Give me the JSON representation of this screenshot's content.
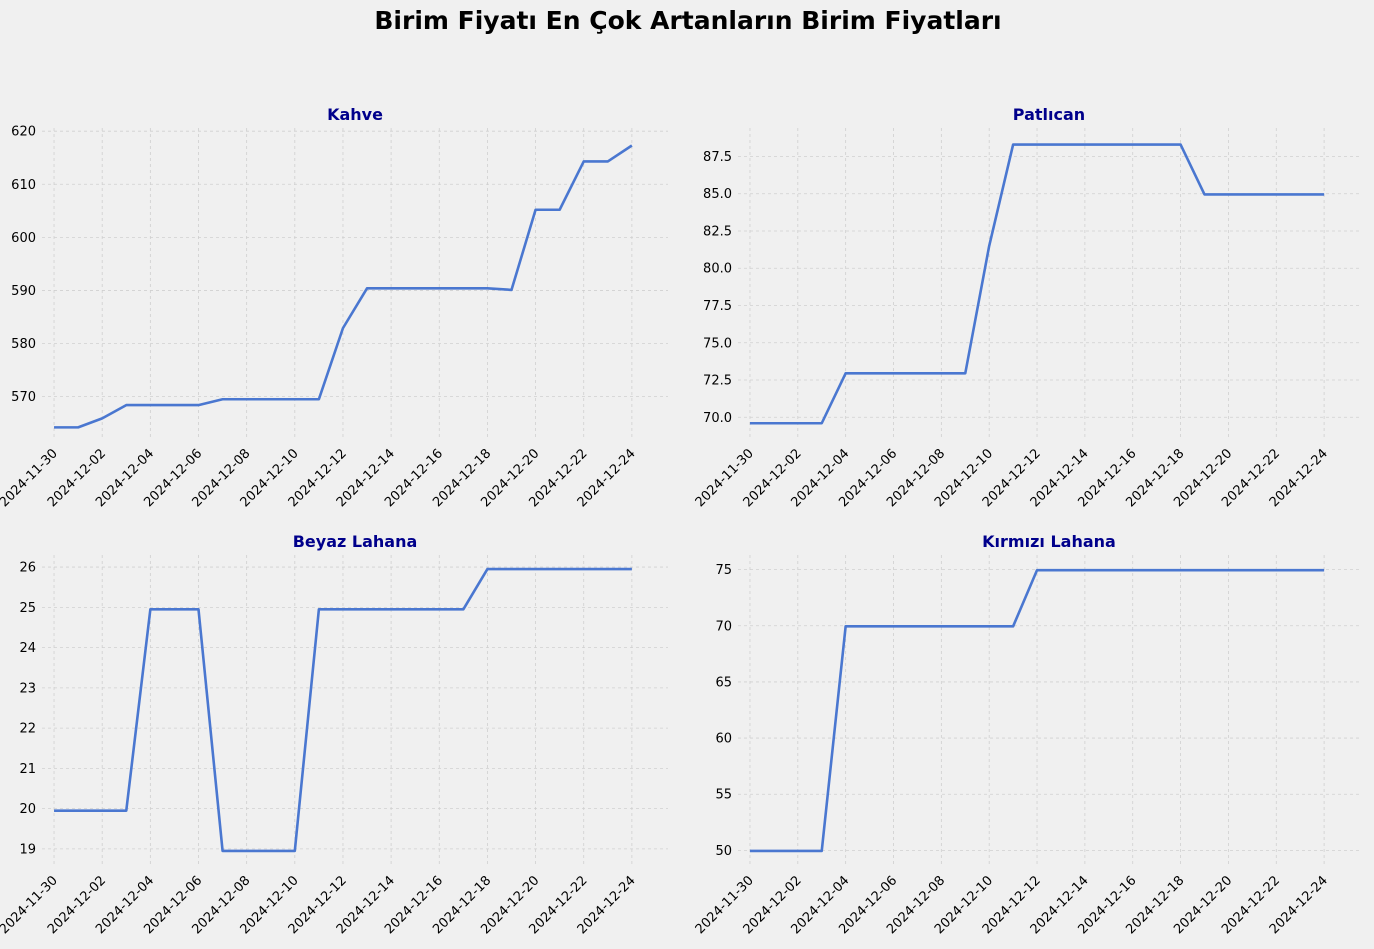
{
  "figure_title": "Birim Fiyatı En Çok Artanların Birim Fiyatları",
  "colors": {
    "line": "#4a77d0",
    "title": "#00008b",
    "grid": "#cfcfcf",
    "background": "#f0f0f0"
  },
  "chart_data": [
    {
      "type": "line",
      "title": "Kahve",
      "xlabel": "",
      "ylabel": "",
      "grid": true,
      "x_ticks": [
        "2024-11-30",
        "2024-12-02",
        "2024-12-04",
        "2024-12-06",
        "2024-12-08",
        "2024-12-10",
        "2024-12-12",
        "2024-12-14",
        "2024-12-16",
        "2024-12-18",
        "2024-12-20",
        "2024-12-22",
        "2024-12-24"
      ],
      "y_ticks": [
        570,
        580,
        590,
        600,
        610,
        620
      ],
      "ylim": [
        562.2,
        620.6
      ],
      "x": [
        "2024-11-30",
        "2024-12-01",
        "2024-12-02",
        "2024-12-03",
        "2024-12-04",
        "2024-12-05",
        "2024-12-06",
        "2024-12-07",
        "2024-12-08",
        "2024-12-09",
        "2024-12-10",
        "2024-12-11",
        "2024-12-12",
        "2024-12-13",
        "2024-12-14",
        "2024-12-15",
        "2024-12-16",
        "2024-12-17",
        "2024-12-18",
        "2024-12-19",
        "2024-12-20",
        "2024-12-21",
        "2024-12-22",
        "2024-12-23",
        "2024-12-24"
      ],
      "values": [
        564.2,
        564.2,
        565.9,
        568.4,
        568.4,
        568.4,
        568.4,
        569.5,
        569.5,
        569.5,
        569.5,
        569.5,
        582.9,
        590.4,
        590.4,
        590.4,
        590.4,
        590.4,
        590.4,
        590.1,
        605.2,
        605.2,
        614.3,
        614.3,
        617.3
      ]
    },
    {
      "type": "line",
      "title": "Patlıcan",
      "xlabel": "",
      "ylabel": "",
      "grid": true,
      "x_ticks": [
        "2024-11-30",
        "2024-12-02",
        "2024-12-04",
        "2024-12-06",
        "2024-12-08",
        "2024-12-10",
        "2024-12-12",
        "2024-12-14",
        "2024-12-16",
        "2024-12-18",
        "2024-12-20",
        "2024-12-22",
        "2024-12-24"
      ],
      "y_ticks": [
        70.0,
        72.5,
        75.0,
        77.5,
        80.0,
        82.5,
        85.0,
        87.5
      ],
      "y_tick_labels": [
        "70.0",
        "72.5",
        "75.0",
        "77.5",
        "80.0",
        "82.5",
        "85.0",
        "87.5"
      ],
      "ylim": [
        68.61,
        89.41
      ],
      "x": [
        "2024-11-30",
        "2024-12-01",
        "2024-12-02",
        "2024-12-03",
        "2024-12-04",
        "2024-12-05",
        "2024-12-06",
        "2024-12-07",
        "2024-12-08",
        "2024-12-09",
        "2024-12-10",
        "2024-12-11",
        "2024-12-12",
        "2024-12-13",
        "2024-12-14",
        "2024-12-15",
        "2024-12-16",
        "2024-12-17",
        "2024-12-18",
        "2024-12-19",
        "2024-12-20",
        "2024-12-21",
        "2024-12-22",
        "2024-12-23",
        "2024-12-24"
      ],
      "values": [
        69.6,
        69.6,
        69.6,
        69.6,
        72.95,
        72.95,
        72.95,
        72.95,
        72.95,
        72.95,
        81.5,
        88.3,
        88.3,
        88.3,
        88.3,
        88.3,
        88.3,
        88.3,
        88.3,
        84.95,
        84.95,
        84.95,
        84.95,
        84.95,
        84.95
      ]
    },
    {
      "type": "line",
      "title": "Beyaz Lahana",
      "xlabel": "",
      "ylabel": "",
      "grid": true,
      "x_ticks": [
        "2024-11-30",
        "2024-12-02",
        "2024-12-04",
        "2024-12-06",
        "2024-12-08",
        "2024-12-10",
        "2024-12-12",
        "2024-12-14",
        "2024-12-16",
        "2024-12-18",
        "2024-12-20",
        "2024-12-22",
        "2024-12-24"
      ],
      "y_ticks": [
        19,
        20,
        21,
        22,
        23,
        24,
        25,
        26
      ],
      "ylim": [
        18.6,
        26.3
      ],
      "x": [
        "2024-11-30",
        "2024-12-01",
        "2024-12-02",
        "2024-12-03",
        "2024-12-04",
        "2024-12-05",
        "2024-12-06",
        "2024-12-07",
        "2024-12-08",
        "2024-12-09",
        "2024-12-10",
        "2024-12-11",
        "2024-12-12",
        "2024-12-13",
        "2024-12-14",
        "2024-12-15",
        "2024-12-16",
        "2024-12-17",
        "2024-12-18",
        "2024-12-19",
        "2024-12-20",
        "2024-12-21",
        "2024-12-22",
        "2024-12-23",
        "2024-12-24"
      ],
      "values": [
        19.95,
        19.95,
        19.95,
        19.95,
        24.95,
        24.95,
        24.95,
        18.95,
        18.95,
        18.95,
        18.95,
        24.95,
        24.95,
        24.95,
        24.95,
        24.95,
        24.95,
        24.95,
        25.95,
        25.95,
        25.95,
        25.95,
        25.95,
        25.95,
        25.95
      ]
    },
    {
      "type": "line",
      "title": "Kırmızı Lahana",
      "xlabel": "",
      "ylabel": "",
      "grid": true,
      "x_ticks": [
        "2024-11-30",
        "2024-12-02",
        "2024-12-04",
        "2024-12-06",
        "2024-12-08",
        "2024-12-10",
        "2024-12-12",
        "2024-12-14",
        "2024-12-16",
        "2024-12-18",
        "2024-12-20",
        "2024-12-22",
        "2024-12-24"
      ],
      "y_ticks": [
        50,
        55,
        60,
        65,
        70,
        75
      ],
      "ylim": [
        48.7,
        76.3
      ],
      "x": [
        "2024-11-30",
        "2024-12-01",
        "2024-12-02",
        "2024-12-03",
        "2024-12-04",
        "2024-12-05",
        "2024-12-06",
        "2024-12-07",
        "2024-12-08",
        "2024-12-09",
        "2024-12-10",
        "2024-12-11",
        "2024-12-12",
        "2024-12-13",
        "2024-12-14",
        "2024-12-15",
        "2024-12-16",
        "2024-12-17",
        "2024-12-18",
        "2024-12-19",
        "2024-12-20",
        "2024-12-21",
        "2024-12-22",
        "2024-12-23",
        "2024-12-24"
      ],
      "values": [
        49.95,
        49.95,
        49.95,
        49.95,
        69.95,
        69.95,
        69.95,
        69.95,
        69.95,
        69.95,
        69.95,
        69.95,
        74.95,
        74.95,
        74.95,
        74.95,
        74.95,
        74.95,
        74.95,
        74.95,
        74.95,
        74.95,
        74.95,
        74.95,
        74.95
      ]
    }
  ]
}
